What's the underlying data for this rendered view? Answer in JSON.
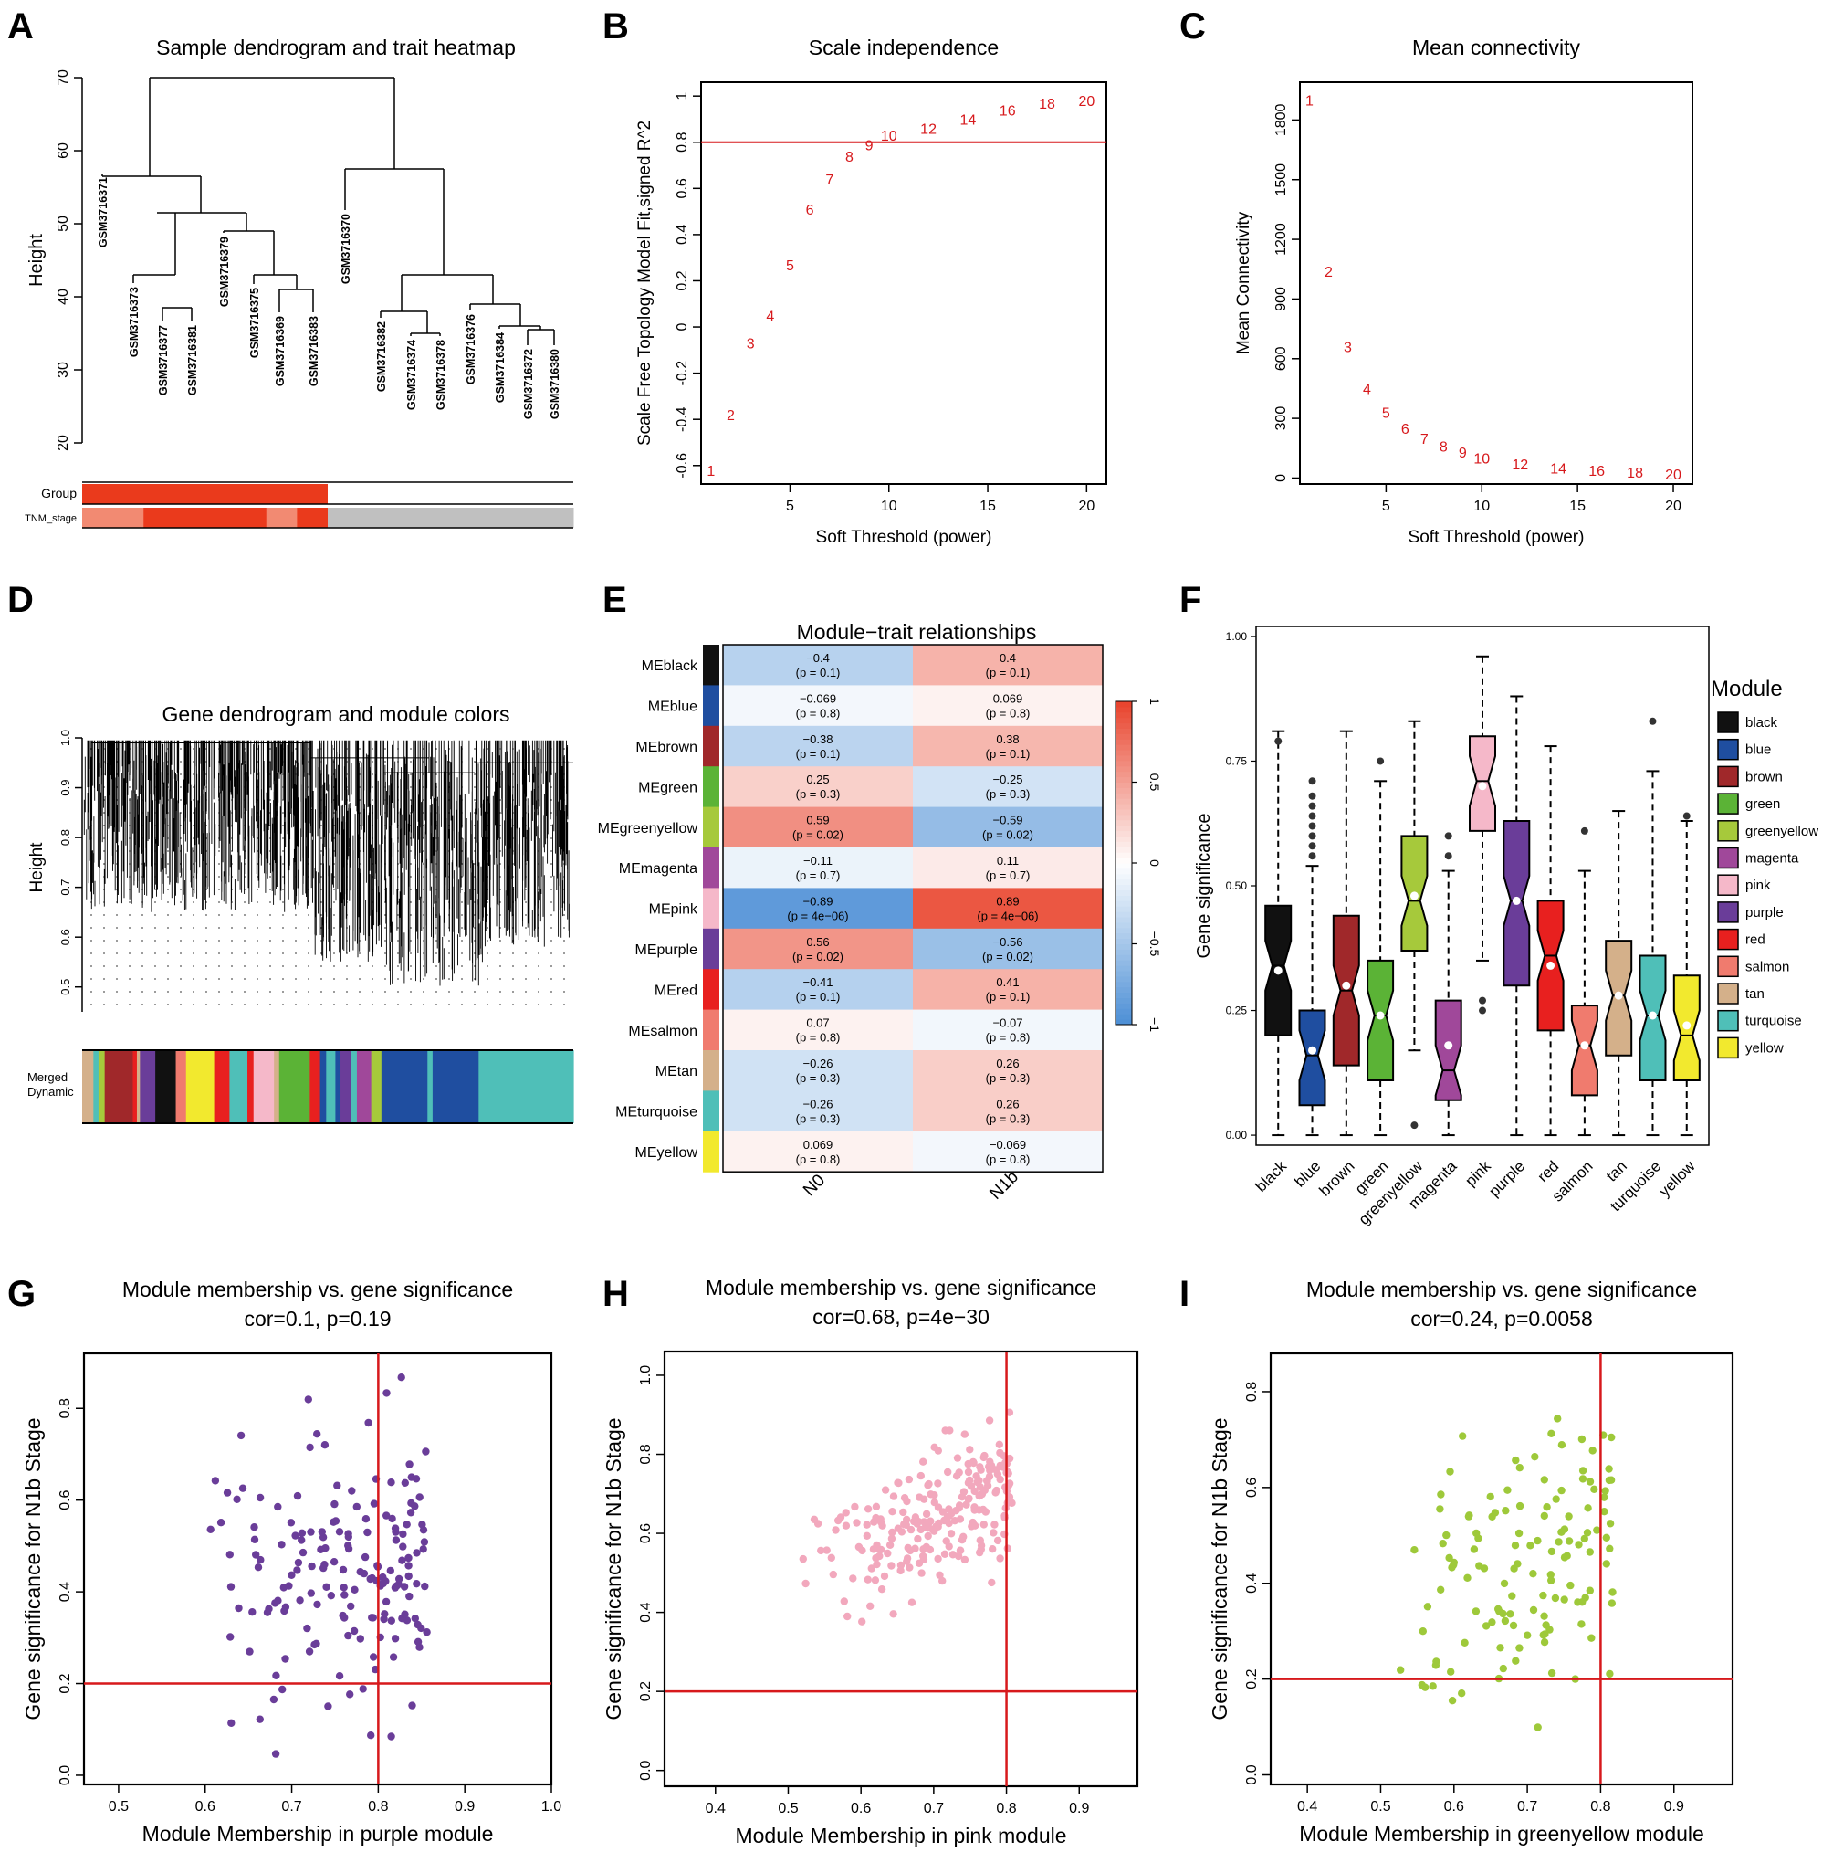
{
  "panel_letters": [
    "A",
    "B",
    "C",
    "D",
    "E",
    "F",
    "G",
    "H",
    "I"
  ],
  "colors": {
    "axis": "#000000",
    "red_line": "#d7191c",
    "threshold_text": "#d7191c",
    "case_red": "#ea3a1c",
    "stage_light": "#f28a72",
    "grey": "#c0c0c0",
    "heat_neg": "#4b8ed5",
    "heat_mid": "#ffffff",
    "heat_pos": "#e8422b"
  },
  "module_colors": {
    "black": "#111111",
    "blue": "#1f4ea0",
    "brown": "#a0282a",
    "green": "#5bb336",
    "greenyellow": "#a6c93b",
    "magenta": "#a0489a",
    "pink": "#f5b8c9",
    "purple": "#6a3d99",
    "red": "#e8201f",
    "salmon": "#f07b6e",
    "tan": "#d4b08a",
    "turquoise": "#4fbfb8",
    "yellow": "#f2e92e",
    "scatter_purple": "#6a3d99",
    "scatter_pink": "#f2a8bd",
    "scatter_greenyellow": "#9ec93a"
  },
  "chart_data": [
    {
      "id": "A",
      "type": "dendrogram",
      "title": "Sample dendrogram and trait heatmap",
      "ylabel": "Height",
      "ylim": [
        20,
        70
      ],
      "yticks": [
        20,
        30,
        40,
        50,
        60,
        70
      ],
      "leaves": [
        "GSM3716371",
        "GSM3716373",
        "GSM3716377",
        "GSM3716381",
        "GSM3716379",
        "GSM3716375",
        "GSM3716369",
        "GSM3716383",
        "GSM3716370",
        "GSM3716382",
        "GSM3716374",
        "GSM3716378",
        "GSM3716376",
        "GSM3716384",
        "GSM3716372",
        "GSM3716380"
      ],
      "trait_rows": [
        "Group",
        "TNM_stage"
      ],
      "group_row": [
        "case",
        "case",
        "case",
        "case",
        "case",
        "case",
        "case",
        "case",
        "ctrl",
        "ctrl",
        "ctrl",
        "ctrl",
        "ctrl",
        "ctrl",
        "ctrl",
        "ctrl"
      ],
      "stage_row": [
        "light",
        "light",
        "dark",
        "dark",
        "dark",
        "dark",
        "light",
        "dark",
        "grey",
        "grey",
        "grey",
        "grey",
        "grey",
        "grey",
        "grey",
        "grey"
      ]
    },
    {
      "id": "B",
      "type": "scatter",
      "title": "Scale independence",
      "xlabel": "Soft Threshold (power)",
      "ylabel": "Scale Free Topology Model Fit,signed R^2",
      "xlim": [
        0.5,
        21
      ],
      "ylim": [
        -0.68,
        1.06
      ],
      "xticks": [
        5,
        10,
        15,
        20
      ],
      "yticks": [
        -0.6,
        -0.4,
        -0.2,
        0,
        0.2,
        0.4,
        0.6,
        0.8,
        1
      ],
      "ytick_labels": [
        "-0.6",
        "-0.4",
        "-0.2",
        "0",
        "0.2",
        "0.4",
        "0.6",
        "0.8",
        "1"
      ],
      "hline": 0.8,
      "x": [
        1,
        2,
        3,
        4,
        5,
        6,
        7,
        8,
        9,
        10,
        12,
        14,
        16,
        18,
        20
      ],
      "y": [
        -0.62,
        -0.38,
        -0.07,
        0.05,
        0.27,
        0.51,
        0.64,
        0.74,
        0.79,
        0.83,
        0.86,
        0.9,
        0.94,
        0.97,
        0.98
      ],
      "labels": [
        "1",
        "2",
        "3",
        "4",
        "5",
        "6",
        "7",
        "8",
        "9",
        "10",
        "12",
        "14",
        "16",
        "18",
        "20"
      ]
    },
    {
      "id": "C",
      "type": "scatter",
      "title": "Mean connectivity",
      "xlabel": "Soft Threshold (power)",
      "ylabel": "Mean Connectivity",
      "xlim": [
        0.5,
        21
      ],
      "ylim": [
        -30,
        1990
      ],
      "xticks": [
        5,
        10,
        15,
        20
      ],
      "yticks": [
        0,
        300,
        600,
        900,
        1200,
        1500,
        1800
      ],
      "ytick_labels": [
        "0",
        "300",
        "600",
        "900",
        "1200",
        "1500",
        "1800"
      ],
      "x": [
        1,
        2,
        3,
        4,
        5,
        6,
        7,
        8,
        9,
        10,
        12,
        14,
        16,
        18,
        20
      ],
      "y": [
        1900,
        1040,
        660,
        450,
        330,
        250,
        200,
        160,
        130,
        100,
        70,
        50,
        40,
        30,
        20
      ],
      "labels": [
        "1",
        "2",
        "3",
        "4",
        "5",
        "6",
        "7",
        "8",
        "9",
        "10",
        "12",
        "14",
        "16",
        "18",
        "20"
      ]
    },
    {
      "id": "D",
      "type": "dendrogram",
      "title": "Gene dendrogram and module colors",
      "ylabel": "Height",
      "ylim": [
        0.45,
        1.0
      ],
      "yticks": [
        0.5,
        0.6,
        0.7,
        0.8,
        0.9,
        1.0
      ],
      "ytick_labels": [
        "0.5",
        "0.6",
        "0.7",
        "0.8",
        "0.9",
        "1.0"
      ],
      "color_rows": [
        "Merged",
        "Dynamic"
      ],
      "module_bar": [
        [
          "tan",
          0.022
        ],
        [
          "turquoise",
          0.01
        ],
        [
          "greenyellow",
          0.012
        ],
        [
          "brown",
          0.055
        ],
        [
          "red",
          0.008
        ],
        [
          "tan",
          0.006
        ],
        [
          "purple",
          0.03
        ],
        [
          "black",
          0.04
        ],
        [
          "salmon",
          0.02
        ],
        [
          "yellow",
          0.055
        ],
        [
          "red",
          0.03
        ],
        [
          "turquoise",
          0.035
        ],
        [
          "red",
          0.012
        ],
        [
          "pink",
          0.04
        ],
        [
          "tan",
          0.01
        ],
        [
          "green",
          0.06
        ],
        [
          "red",
          0.02
        ],
        [
          "blue",
          0.012
        ],
        [
          "turquoise",
          0.018
        ],
        [
          "blue",
          0.01
        ],
        [
          "purple",
          0.02
        ],
        [
          "turquoise",
          0.012
        ],
        [
          "magenta",
          0.028
        ],
        [
          "greenyellow",
          0.02
        ],
        [
          "blue",
          0.09
        ],
        [
          "turquoise",
          0.01
        ],
        [
          "blue",
          0.09
        ],
        [
          "turquoise",
          0.185
        ]
      ]
    },
    {
      "id": "E",
      "type": "heatmap",
      "title": "Module−trait relationships",
      "columns": [
        "N0",
        "N1b"
      ],
      "colorbar_ticks": [
        -1,
        -0.5,
        0,
        0.5,
        1
      ],
      "colorbar_labels": [
        "−1",
        "−0.5",
        "0",
        "0.5",
        "1"
      ],
      "rows": [
        {
          "name": "MEblack",
          "color": "black",
          "r": [
            -0.4,
            0.4
          ],
          "labels": [
            "−0.4",
            "0.4"
          ],
          "p": [
            "(p = 0.1)",
            "(p = 0.1)"
          ]
        },
        {
          "name": "MEblue",
          "color": "blue",
          "r": [
            -0.069,
            0.069
          ],
          "labels": [
            "−0.069",
            "0.069"
          ],
          "p": [
            "(p = 0.8)",
            "(p = 0.8)"
          ]
        },
        {
          "name": "MEbrown",
          "color": "brown",
          "r": [
            -0.38,
            0.38
          ],
          "labels": [
            "−0.38",
            "0.38"
          ],
          "p": [
            "(p = 0.1)",
            "(p = 0.1)"
          ]
        },
        {
          "name": "MEgreen",
          "color": "green",
          "r": [
            0.25,
            -0.25
          ],
          "labels": [
            "0.25",
            "−0.25"
          ],
          "p": [
            "(p = 0.3)",
            "(p = 0.3)"
          ]
        },
        {
          "name": "MEgreenyellow",
          "color": "greenyellow",
          "r": [
            0.59,
            -0.59
          ],
          "labels": [
            "0.59",
            "−0.59"
          ],
          "p": [
            "(p = 0.02)",
            "(p = 0.02)"
          ]
        },
        {
          "name": "MEmagenta",
          "color": "magenta",
          "r": [
            -0.11,
            0.11
          ],
          "labels": [
            "−0.11",
            "0.11"
          ],
          "p": [
            "(p = 0.7)",
            "(p = 0.7)"
          ]
        },
        {
          "name": "MEpink",
          "color": "pink",
          "r": [
            -0.89,
            0.89
          ],
          "labels": [
            "−0.89",
            "0.89"
          ],
          "p": [
            "(p = 4e−06)",
            "(p = 4e−06)"
          ]
        },
        {
          "name": "MEpurple",
          "color": "purple",
          "r": [
            0.56,
            -0.56
          ],
          "labels": [
            "0.56",
            "−0.56"
          ],
          "p": [
            "(p = 0.02)",
            "(p = 0.02)"
          ]
        },
        {
          "name": "MEred",
          "color": "red",
          "r": [
            -0.41,
            0.41
          ],
          "labels": [
            "−0.41",
            "0.41"
          ],
          "p": [
            "(p = 0.1)",
            "(p = 0.1)"
          ]
        },
        {
          "name": "MEsalmon",
          "color": "salmon",
          "r": [
            0.07,
            -0.07
          ],
          "labels": [
            "0.07",
            "−0.07"
          ],
          "p": [
            "(p = 0.8)",
            "(p = 0.8)"
          ]
        },
        {
          "name": "MEtan",
          "color": "tan",
          "r": [
            -0.26,
            0.26
          ],
          "labels": [
            "−0.26",
            "0.26"
          ],
          "p": [
            "(p = 0.3)",
            "(p = 0.3)"
          ]
        },
        {
          "name": "MEturquoise",
          "color": "turquoise",
          "r": [
            -0.26,
            0.26
          ],
          "labels": [
            "−0.26",
            "0.26"
          ],
          "p": [
            "(p = 0.3)",
            "(p = 0.3)"
          ]
        },
        {
          "name": "MEyellow",
          "color": "yellow",
          "r": [
            0.069,
            -0.069
          ],
          "labels": [
            "0.069",
            "−0.069"
          ],
          "p": [
            "(p = 0.8)",
            "(p = 0.8)"
          ]
        }
      ]
    },
    {
      "id": "F",
      "type": "boxplot",
      "ylabel": "Gene significance",
      "ylim": [
        -0.02,
        1.02
      ],
      "yticks": [
        0,
        0.25,
        0.5,
        0.75,
        1
      ],
      "ytick_labels": [
        "0.00",
        "0.25",
        "0.50",
        "0.75",
        "1.00"
      ],
      "legend_title": "Module",
      "legend_position": "right",
      "boxes": [
        {
          "name": "black",
          "min": 0.0,
          "q1": 0.2,
          "med": 0.34,
          "q3": 0.46,
          "max": 0.81,
          "mean": 0.33,
          "out": [
            0.79
          ]
        },
        {
          "name": "blue",
          "min": 0.0,
          "q1": 0.06,
          "med": 0.16,
          "q3": 0.25,
          "max": 0.54,
          "mean": 0.17,
          "out": [
            0.56,
            0.58,
            0.6,
            0.62,
            0.64,
            0.66,
            0.68,
            0.71
          ]
        },
        {
          "name": "brown",
          "min": 0.0,
          "q1": 0.14,
          "med": 0.29,
          "q3": 0.44,
          "max": 0.81,
          "mean": 0.3,
          "out": []
        },
        {
          "name": "green",
          "min": 0.0,
          "q1": 0.11,
          "med": 0.24,
          "q3": 0.35,
          "max": 0.71,
          "mean": 0.24,
          "out": [
            0.75
          ]
        },
        {
          "name": "greenyellow",
          "min": 0.17,
          "q1": 0.37,
          "med": 0.47,
          "q3": 0.6,
          "max": 0.83,
          "mean": 0.48,
          "out": [
            0.02
          ]
        },
        {
          "name": "magenta",
          "min": 0.0,
          "q1": 0.07,
          "med": 0.13,
          "q3": 0.27,
          "max": 0.53,
          "mean": 0.18,
          "out": [
            0.56,
            0.6
          ]
        },
        {
          "name": "pink",
          "min": 0.35,
          "q1": 0.61,
          "med": 0.71,
          "q3": 0.8,
          "max": 0.96,
          "mean": 0.7,
          "out": [
            0.25,
            0.27
          ]
        },
        {
          "name": "purple",
          "min": 0.0,
          "q1": 0.3,
          "med": 0.47,
          "q3": 0.63,
          "max": 0.88,
          "mean": 0.47,
          "out": []
        },
        {
          "name": "red",
          "min": 0.0,
          "q1": 0.21,
          "med": 0.36,
          "q3": 0.47,
          "max": 0.78,
          "mean": 0.34,
          "out": []
        },
        {
          "name": "salmon",
          "min": 0.0,
          "q1": 0.08,
          "med": 0.18,
          "q3": 0.26,
          "max": 0.53,
          "mean": 0.18,
          "out": [
            0.61
          ]
        },
        {
          "name": "tan",
          "min": 0.0,
          "q1": 0.16,
          "med": 0.28,
          "q3": 0.39,
          "max": 0.65,
          "mean": 0.28,
          "out": []
        },
        {
          "name": "turquoise",
          "min": 0.0,
          "q1": 0.11,
          "med": 0.24,
          "q3": 0.36,
          "max": 0.73,
          "mean": 0.24,
          "out": [
            0.83
          ]
        },
        {
          "name": "yellow",
          "min": 0.0,
          "q1": 0.11,
          "med": 0.2,
          "q3": 0.32,
          "max": 0.63,
          "mean": 0.22,
          "out": [
            0.64
          ]
        }
      ]
    },
    {
      "id": "G",
      "type": "scatter",
      "title": "Module membership vs. gene significance",
      "subtitle": "cor=0.1, p=0.19",
      "xlabel": "Module Membership in purple module",
      "ylabel": "Gene significance for N1b Stage",
      "xlim": [
        0.46,
        1.0
      ],
      "ylim": [
        -0.02,
        0.92
      ],
      "xticks": [
        0.5,
        0.6,
        0.7,
        0.8,
        0.9,
        1.0
      ],
      "xtick_labels": [
        "0.5",
        "0.6",
        "0.7",
        "0.8",
        "0.9",
        "1.0"
      ],
      "yticks": [
        0,
        0.2,
        0.4,
        0.6,
        0.8
      ],
      "ytick_labels": [
        "0.0",
        "0.2",
        "0.4",
        "0.6",
        "0.8"
      ],
      "vline": 0.8,
      "hline": 0.2,
      "color": "scatter_purple",
      "seed": 7,
      "n": 170,
      "corr": 0.1,
      "x_range": [
        0.47,
        0.985
      ],
      "y_range": [
        0.0,
        0.88
      ]
    },
    {
      "id": "H",
      "type": "scatter",
      "title": "Module membership vs. gene significance",
      "subtitle": "cor=0.68, p=4e−30",
      "xlabel": "Module Membership in pink module",
      "ylabel": "Gene significance for N1b Stage",
      "xlim": [
        0.33,
        0.98
      ],
      "ylim": [
        -0.04,
        1.06
      ],
      "xticks": [
        0.4,
        0.5,
        0.6,
        0.7,
        0.8,
        0.9
      ],
      "xtick_labels": [
        "0.4",
        "0.5",
        "0.6",
        "0.7",
        "0.8",
        "0.9"
      ],
      "yticks": [
        0,
        0.2,
        0.4,
        0.6,
        0.8,
        1.0
      ],
      "ytick_labels": [
        "0.0",
        "0.2",
        "0.4",
        "0.6",
        "0.8",
        "1.0"
      ],
      "vline": 0.8,
      "hline": 0.2,
      "color": "scatter_pink",
      "seed": 13,
      "n": 230,
      "corr": 0.68,
      "x_range": [
        0.35,
        0.96
      ],
      "y_range": [
        0.25,
        0.96
      ]
    },
    {
      "id": "I",
      "type": "scatter",
      "title": "Module membership vs. gene significance",
      "subtitle": "cor=0.24, p=0.0058",
      "xlabel": "Module Membership in greenyellow module",
      "ylabel": "Gene significance for N1b Stage",
      "xlim": [
        0.35,
        0.98
      ],
      "ylim": [
        -0.02,
        0.88
      ],
      "xticks": [
        0.4,
        0.5,
        0.6,
        0.7,
        0.8,
        0.9
      ],
      "xtick_labels": [
        "0.4",
        "0.5",
        "0.6",
        "0.7",
        "0.8",
        "0.9"
      ],
      "yticks": [
        0,
        0.2,
        0.4,
        0.6,
        0.8
      ],
      "ytick_labels": [
        "0.0",
        "0.2",
        "0.4",
        "0.6",
        "0.8"
      ],
      "vline": 0.8,
      "hline": 0.2,
      "color": "scatter_greenyellow",
      "seed": 29,
      "n": 130,
      "corr": 0.24,
      "x_range": [
        0.37,
        0.97
      ],
      "y_range": [
        0.02,
        0.83
      ]
    }
  ]
}
